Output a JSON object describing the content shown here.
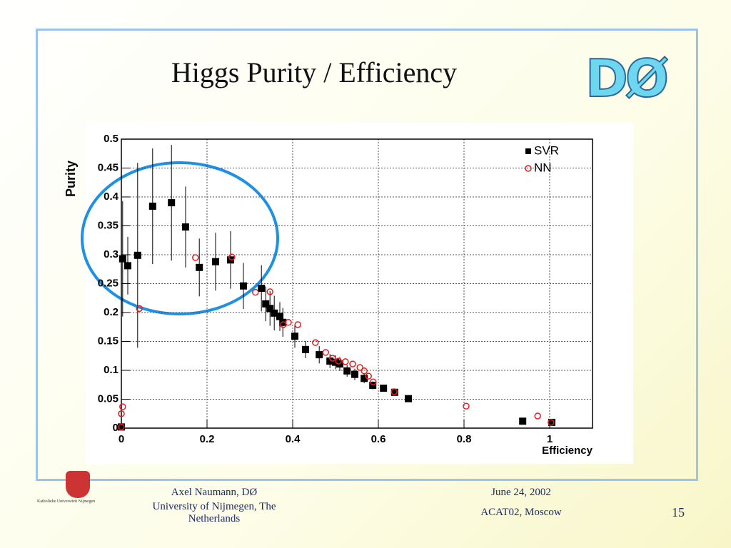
{
  "title": "Higgs Purity / Efficiency",
  "logo": "DØ",
  "university_logo": "Katholieke Universiteit Nijmegen",
  "footer": {
    "author": "Axel Naumann, DØ",
    "affiliation": "University of Nijmegen, The Netherlands",
    "date": "June 24, 2002",
    "event": "ACAT02, Moscow",
    "page": "15"
  },
  "chart_data": {
    "type": "scatter",
    "xlabel": "Efficiency",
    "ylabel": "Purity",
    "xlim": [
      0,
      1.1
    ],
    "ylim": [
      0,
      0.5
    ],
    "xticks": [
      0,
      0.2,
      0.4,
      0.6,
      0.8,
      1
    ],
    "yticks": [
      0,
      0.05,
      0.1,
      0.15,
      0.2,
      0.25,
      0.3,
      0.35,
      0.4,
      0.45,
      0.5
    ],
    "grid": true,
    "legend": "upper right",
    "series": [
      {
        "name": "SVR",
        "color": "#000000",
        "marker": "square",
        "x": [
          0,
          0.003,
          0.015,
          0.038,
          0.073,
          0.117,
          0.15,
          0.182,
          0.22,
          0.255,
          0.285,
          0.327,
          0.337,
          0.347,
          0.357,
          0.37,
          0.377,
          0.405,
          0.43,
          0.462,
          0.487,
          0.5,
          0.51,
          0.527,
          0.545,
          0.567,
          0.587,
          0.612,
          0.638,
          0.67,
          0.937,
          1.005
        ],
        "values": [
          0.002,
          0.293,
          0.281,
          0.299,
          0.384,
          0.39,
          0.348,
          0.278,
          0.288,
          0.291,
          0.246,
          0.242,
          0.215,
          0.207,
          0.199,
          0.193,
          0.183,
          0.159,
          0.136,
          0.127,
          0.116,
          0.114,
          0.111,
          0.099,
          0.093,
          0.086,
          0.074,
          0.069,
          0.062,
          0.051,
          0.012,
          0.01
        ],
        "errors": [
          0.002,
          0.1,
          0.05,
          0.16,
          0.1,
          0.1,
          0.07,
          0.05,
          0.05,
          0.05,
          0.04,
          0.04,
          0.03,
          0.03,
          0.03,
          0.025,
          0.025,
          0.02,
          0.015,
          0.015,
          0.012,
          0.012,
          0.012,
          0.01,
          0.01,
          0.008,
          0.007,
          0.006,
          0.005,
          0.004,
          0.003,
          0.003
        ]
      },
      {
        "name": "NN",
        "color": "#e02020",
        "marker": "circle",
        "x": [
          0,
          0,
          0.003,
          0.042,
          0.173,
          0.258,
          0.313,
          0.347,
          0.378,
          0.39,
          0.412,
          0.453,
          0.477,
          0.493,
          0.507,
          0.523,
          0.54,
          0.557,
          0.567,
          0.577,
          0.588,
          0.637,
          0.805,
          0.972,
          1.003
        ],
        "values": [
          0.002,
          0.025,
          0.037,
          0.207,
          0.295,
          0.296,
          0.235,
          0.236,
          0.179,
          0.183,
          0.179,
          0.148,
          0.131,
          0.121,
          0.116,
          0.115,
          0.111,
          0.105,
          0.099,
          0.09,
          0.08,
          0.063,
          0.038,
          0.021,
          0.01
        ]
      }
    ]
  }
}
